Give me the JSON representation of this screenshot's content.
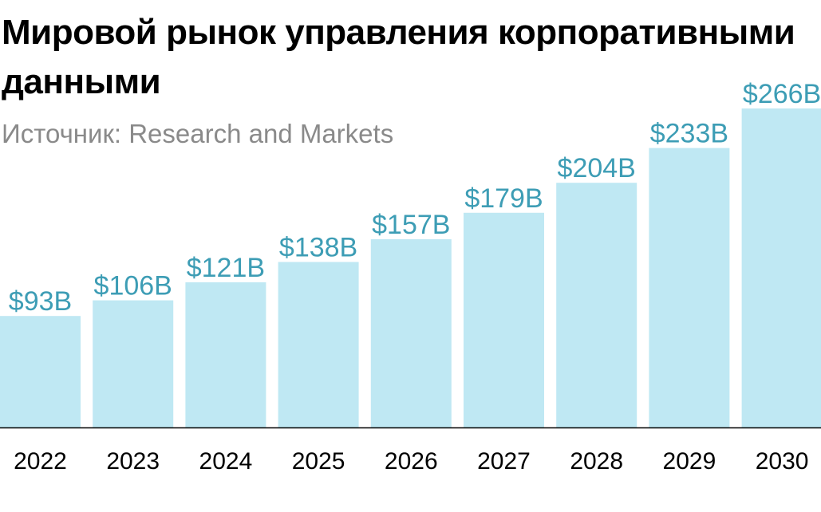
{
  "header": {
    "title": "Мировой рынок управления корпоративными данными",
    "source": "Источник: Research and Markets"
  },
  "colors": {
    "bar": "#bfe8f3",
    "label": "#3d9db5",
    "axis": "#000000",
    "title": "#000000",
    "source": "#8a8a8a"
  },
  "chart_data": {
    "type": "bar",
    "title": "Мировой рынок управления корпоративными данными",
    "subtitle": "Источник: Research and Markets",
    "categories": [
      "2022",
      "2023",
      "2024",
      "2025",
      "2026",
      "2027",
      "2028",
      "2029",
      "2030"
    ],
    "values": [
      93,
      106,
      121,
      138,
      157,
      179,
      204,
      233,
      266
    ],
    "data_labels": [
      "$93B",
      "$106B",
      "$121B",
      "$138B",
      "$157B",
      "$179B",
      "$204B",
      "$233B",
      "$266B"
    ],
    "xlabel": "",
    "ylabel": "",
    "ylim": [
      0,
      266
    ],
    "grid": false,
    "legend": "none"
  }
}
